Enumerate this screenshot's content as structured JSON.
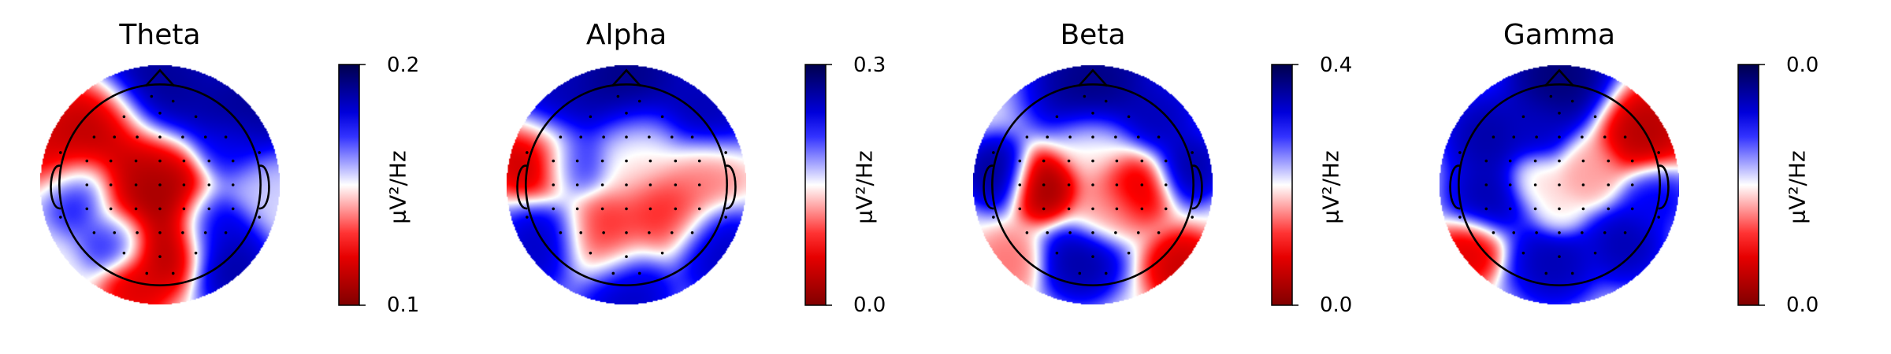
{
  "chart_data": [
    {
      "type": "heatmap",
      "title": "Theta",
      "colorbar": {
        "label": "µV²/Hz",
        "min_label": "0.1",
        "max_label": "0.2",
        "cmap": "seismic_r"
      },
      "blobs": [
        {
          "x": -0.78,
          "y": 0.3,
          "v": 0.1,
          "r": 0.3
        },
        {
          "x": -0.5,
          "y": 0.5,
          "v": 0.05,
          "r": 0.28
        },
        {
          "x": -0.2,
          "y": 0.1,
          "v": 0.1,
          "r": 0.3
        },
        {
          "x": -0.05,
          "y": -0.1,
          "v": 0.0,
          "r": 0.35
        },
        {
          "x": 0.05,
          "y": -0.55,
          "v": 0.05,
          "r": 0.25
        },
        {
          "x": -0.2,
          "y": -0.85,
          "v": 0.15,
          "r": 0.2
        },
        {
          "x": 0.0,
          "y": 0.85,
          "v": 0.95,
          "r": 0.4
        },
        {
          "x": 0.7,
          "y": 0.6,
          "v": 0.95,
          "r": 0.35
        },
        {
          "x": 0.6,
          "y": 0.3,
          "v": 0.75,
          "r": 0.22
        },
        {
          "x": -0.65,
          "y": -0.05,
          "v": 0.85,
          "r": 0.25
        },
        {
          "x": -0.35,
          "y": -0.45,
          "v": 0.8,
          "r": 0.22
        },
        {
          "x": 0.45,
          "y": -0.35,
          "v": 0.85,
          "r": 0.25
        },
        {
          "x": 0.6,
          "y": -0.7,
          "v": 0.92,
          "r": 0.25
        },
        {
          "x": 0.85,
          "y": 0.0,
          "v": 0.55,
          "r": 0.22
        }
      ]
    },
    {
      "type": "heatmap",
      "title": "Alpha",
      "colorbar": {
        "label": "µV²/Hz",
        "min_label": "0.0",
        "max_label": "0.3",
        "cmap": "seismic_r"
      },
      "blobs": [
        {
          "x": -0.75,
          "y": 0.25,
          "v": 0.05,
          "r": 0.28
        },
        {
          "x": -0.2,
          "y": -0.45,
          "v": 0.25,
          "r": 0.28
        },
        {
          "x": 0.35,
          "y": -0.25,
          "v": 0.25,
          "r": 0.28
        },
        {
          "x": 0.65,
          "y": 0.1,
          "v": 0.35,
          "r": 0.25
        },
        {
          "x": 0.1,
          "y": 0.3,
          "v": 0.45,
          "r": 0.3
        },
        {
          "x": 0.0,
          "y": 0.85,
          "v": 0.98,
          "r": 0.4
        },
        {
          "x": -0.6,
          "y": 0.65,
          "v": 0.9,
          "r": 0.3
        },
        {
          "x": 0.65,
          "y": 0.6,
          "v": 0.9,
          "r": 0.3
        },
        {
          "x": -0.45,
          "y": 0.2,
          "v": 0.8,
          "r": 0.22
        },
        {
          "x": -0.7,
          "y": -0.5,
          "v": 0.88,
          "r": 0.28
        },
        {
          "x": 0.0,
          "y": -0.9,
          "v": 0.88,
          "r": 0.3
        },
        {
          "x": 0.75,
          "y": -0.55,
          "v": 0.88,
          "r": 0.28
        }
      ]
    },
    {
      "type": "heatmap",
      "title": "Beta",
      "colorbar": {
        "label": "µV²/Hz",
        "min_label": "0.0",
        "max_label": "0.4",
        "cmap": "seismic_r"
      },
      "blobs": [
        {
          "x": -0.4,
          "y": 0.0,
          "v": 0.0,
          "r": 0.22
        },
        {
          "x": 0.35,
          "y": 0.0,
          "v": 0.15,
          "r": 0.24
        },
        {
          "x": -0.7,
          "y": -0.65,
          "v": 0.35,
          "r": 0.2
        },
        {
          "x": 0.75,
          "y": -0.7,
          "v": 0.1,
          "r": 0.22
        },
        {
          "x": 0.0,
          "y": 0.3,
          "v": 0.45,
          "r": 0.25
        },
        {
          "x": 0.1,
          "y": -0.2,
          "v": 0.4,
          "r": 0.22
        },
        {
          "x": 0.0,
          "y": 0.85,
          "v": 0.98,
          "r": 0.4
        },
        {
          "x": -0.8,
          "y": 0.1,
          "v": 0.95,
          "r": 0.22
        },
        {
          "x": 0.8,
          "y": 0.15,
          "v": 0.92,
          "r": 0.22
        },
        {
          "x": -0.1,
          "y": -0.65,
          "v": 0.92,
          "r": 0.25
        },
        {
          "x": 0.55,
          "y": 0.55,
          "v": 0.88,
          "r": 0.25
        }
      ]
    },
    {
      "type": "heatmap",
      "title": "Gamma",
      "colorbar": {
        "label": "µV²/Hz",
        "min_label": "0.0",
        "max_label": "0.0",
        "cmap": "seismic_r"
      },
      "blobs": [
        {
          "x": 0.7,
          "y": 0.45,
          "v": 0.05,
          "r": 0.28
        },
        {
          "x": -0.75,
          "y": -0.55,
          "v": 0.15,
          "r": 0.2
        },
        {
          "x": 0.25,
          "y": 0.1,
          "v": 0.4,
          "r": 0.22
        },
        {
          "x": -0.2,
          "y": 0.05,
          "v": 0.45,
          "r": 0.18
        },
        {
          "x": 0.0,
          "y": -0.25,
          "v": 0.45,
          "r": 0.15
        },
        {
          "x": 0.0,
          "y": 0.9,
          "v": 1.0,
          "r": 0.35
        },
        {
          "x": -0.6,
          "y": 0.4,
          "v": 0.92,
          "r": 0.28
        },
        {
          "x": -0.6,
          "y": -0.1,
          "v": 0.9,
          "r": 0.25
        },
        {
          "x": -0.05,
          "y": -0.65,
          "v": 0.9,
          "r": 0.28
        },
        {
          "x": 0.55,
          "y": -0.5,
          "v": 0.9,
          "r": 0.25
        },
        {
          "x": -0.2,
          "y": 0.45,
          "v": 0.85,
          "r": 0.22
        },
        {
          "x": 0.8,
          "y": -0.1,
          "v": 0.8,
          "r": 0.22
        }
      ]
    }
  ],
  "sensor_positions": [
    [
      -0.07,
      0.74
    ],
    [
      0.11,
      0.7
    ],
    [
      -0.3,
      0.57
    ],
    [
      0.0,
      0.6
    ],
    [
      0.3,
      0.57
    ],
    [
      -0.55,
      0.4
    ],
    [
      -0.38,
      0.4
    ],
    [
      -0.19,
      0.4
    ],
    [
      0.0,
      0.4
    ],
    [
      0.19,
      0.4
    ],
    [
      0.38,
      0.4
    ],
    [
      0.55,
      0.4
    ],
    [
      -0.83,
      0.27
    ],
    [
      -0.61,
      0.2
    ],
    [
      -0.41,
      0.2
    ],
    [
      -0.2,
      0.2
    ],
    [
      0.0,
      0.2
    ],
    [
      0.2,
      0.2
    ],
    [
      0.41,
      0.2
    ],
    [
      0.61,
      0.2
    ],
    [
      0.83,
      0.27
    ],
    [
      -0.61,
      0.0
    ],
    [
      -0.41,
      0.0
    ],
    [
      -0.2,
      0.0
    ],
    [
      0.0,
      0.0
    ],
    [
      0.2,
      0.0
    ],
    [
      0.41,
      0.0
    ],
    [
      0.61,
      0.0
    ],
    [
      -0.83,
      -0.27
    ],
    [
      -0.61,
      -0.2
    ],
    [
      -0.41,
      -0.2
    ],
    [
      -0.2,
      -0.2
    ],
    [
      0.0,
      -0.2
    ],
    [
      0.2,
      -0.2
    ],
    [
      0.41,
      -0.2
    ],
    [
      0.61,
      -0.2
    ],
    [
      0.83,
      -0.27
    ],
    [
      -0.55,
      -0.4
    ],
    [
      -0.38,
      -0.4
    ],
    [
      -0.19,
      -0.4
    ],
    [
      0.0,
      -0.4
    ],
    [
      0.19,
      -0.4
    ],
    [
      0.38,
      -0.4
    ],
    [
      0.55,
      -0.4
    ],
    [
      -0.3,
      -0.57
    ],
    [
      0.0,
      -0.6
    ],
    [
      0.3,
      -0.57
    ],
    [
      -0.11,
      -0.74
    ],
    [
      0.11,
      -0.74
    ]
  ]
}
